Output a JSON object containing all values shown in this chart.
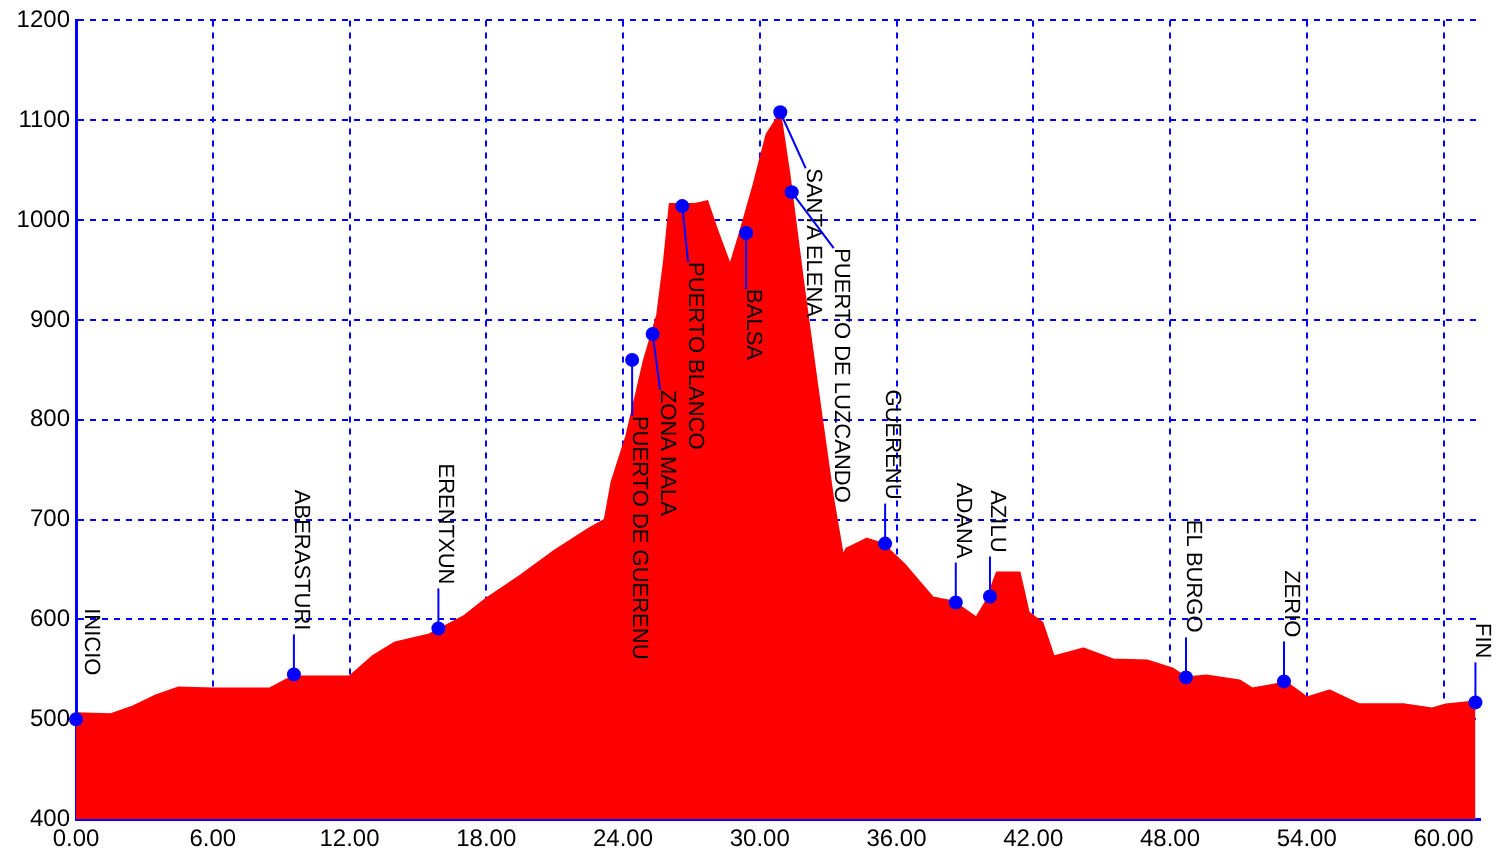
{
  "chart_data": {
    "type": "area",
    "x": [
      0,
      1.5,
      2.5,
      3.5,
      4.5,
      6,
      8.5,
      9.5,
      12,
      13,
      14,
      15.5,
      17,
      18,
      19.5,
      21,
      22.5,
      23.2,
      23.5,
      24.15,
      24.9,
      25.5,
      25.8,
      26.05,
      27.1,
      27.7,
      28.1,
      28.7,
      29.1,
      29.7,
      30.3,
      30.9,
      31.3,
      31.9,
      32.5,
      33.2,
      33.65,
      33.8,
      34.7,
      35.4,
      36.4,
      37.6,
      38.5,
      39.5,
      39.9,
      40.4,
      41.4,
      41.8,
      42.4,
      42.9,
      44.2,
      45.5,
      47,
      48.1,
      48.7,
      49.6,
      51.05,
      51.6,
      53.1,
      54,
      55,
      56.3,
      58.3,
      59.5,
      60.1,
      61.4
    ],
    "series": [
      {
        "color": "#ff0000",
        "values": [
          506,
          505,
          513,
          524,
          532,
          531,
          531,
          543,
          543,
          563,
          577,
          585,
          603,
          621,
          644,
          669,
          691,
          700,
          738,
          784,
          858,
          905,
          959,
          1016,
          1016,
          1019,
          992,
          955,
          985,
          1033,
          1086,
          1107,
          1046,
          939,
          838,
          724,
          664,
          671,
          681,
          676,
          654,
          622,
          618,
          602,
          617,
          647,
          647,
          607,
          597,
          563,
          571,
          560,
          559,
          551,
          542,
          544,
          539,
          531,
          537,
          522,
          529,
          515,
          515,
          511,
          515,
          518
        ]
      }
    ],
    "xlim": [
      0,
      61.6
    ],
    "xticks": [
      {
        "value": 0,
        "label": "0.00"
      },
      {
        "value": 6,
        "label": "6.00"
      },
      {
        "value": 12,
        "label": "12.00"
      },
      {
        "value": 18,
        "label": "18.00"
      },
      {
        "value": 24,
        "label": "24.00"
      },
      {
        "value": 30,
        "label": "30.00"
      },
      {
        "value": 36,
        "label": "36.00"
      },
      {
        "value": 42,
        "label": "42.00"
      },
      {
        "value": 48,
        "label": "48.00"
      },
      {
        "value": 54,
        "label": "54.00"
      },
      {
        "value": 60,
        "label": "60.00"
      }
    ],
    "ylim": [
      400,
      1200
    ],
    "yticks": [
      400,
      500,
      600,
      700,
      800,
      900,
      1000,
      1100,
      1200
    ],
    "grid": true,
    "annotations": [
      {
        "text": "INICIO",
        "x": 0,
        "y": 500
      },
      {
        "text": "ABERASTURI",
        "x": 9.56,
        "y": 545
      },
      {
        "text": "ERENTXUN",
        "x": 15.9,
        "y": 591
      },
      {
        "text": "PUERTO DE GUERENU",
        "x": 24.4,
        "y": 860
      },
      {
        "text": "ZONA MALA",
        "x": 25.3,
        "y": 886
      },
      {
        "text": "PUERTO BLANCO",
        "x": 26.6,
        "y": 1014
      },
      {
        "text": "BALSA",
        "x": 29.4,
        "y": 987
      },
      {
        "text": "SANTA ELENA",
        "x": 30.9,
        "y": 1108
      },
      {
        "text": "PUERTO DE LUZCANDO",
        "x": 31.4,
        "y": 1028
      },
      {
        "text": "GUERENU",
        "x": 35.5,
        "y": 676
      },
      {
        "text": "ADANA",
        "x": 38.6,
        "y": 617
      },
      {
        "text": "AZILU",
        "x": 40.1,
        "y": 623
      },
      {
        "text": "EL BURGO",
        "x": 48.7,
        "y": 542
      },
      {
        "text": "ZERIO",
        "x": 53.0,
        "y": 538
      },
      {
        "text": "FIN",
        "x": 61.4,
        "y": 517
      }
    ]
  }
}
